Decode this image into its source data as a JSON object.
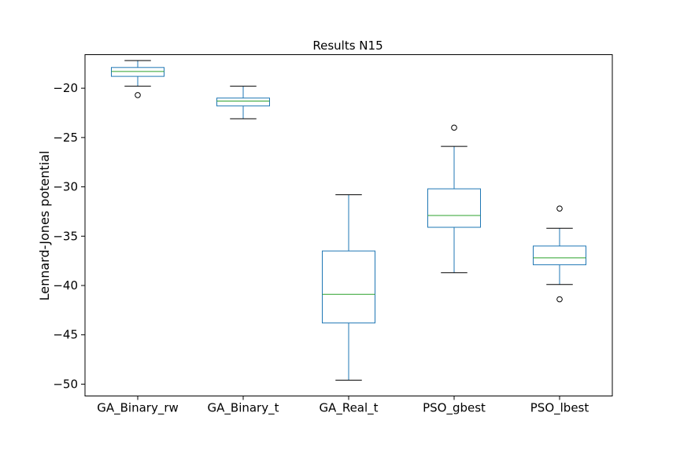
{
  "chart_data": {
    "type": "box",
    "title": "Results N15",
    "xlabel": "",
    "ylabel": "Lennard-Jones potential",
    "ylim": [
      -51.2,
      -16.6
    ],
    "yticks": [
      -20,
      -25,
      -30,
      -35,
      -40,
      -45,
      -50
    ],
    "grid": false,
    "colors": {
      "box": "#1f77b4",
      "median": "#2ca02c",
      "whisker": "#000000",
      "flier": "#000000"
    },
    "categories": [
      "GA_Binary_rw",
      "GA_Binary_t",
      "GA_Real_t",
      "PSO_gbest",
      "PSO_lbest"
    ],
    "boxes": [
      {
        "whislo": -19.8,
        "q1": -18.8,
        "med": -18.3,
        "q3": -17.9,
        "whishi": -17.2,
        "fliers": [
          -20.7
        ]
      },
      {
        "whislo": -23.1,
        "q1": -21.8,
        "med": -21.3,
        "q3": -21.0,
        "whishi": -19.8,
        "fliers": []
      },
      {
        "whislo": -49.6,
        "q1": -43.8,
        "med": -40.9,
        "q3": -36.5,
        "whishi": -30.8,
        "fliers": []
      },
      {
        "whislo": -38.7,
        "q1": -34.1,
        "med": -32.9,
        "q3": -30.2,
        "whishi": -25.9,
        "fliers": [
          -24.0
        ]
      },
      {
        "whislo": -39.9,
        "q1": -37.9,
        "med": -37.2,
        "q3": -36.0,
        "whishi": -34.2,
        "fliers": [
          -32.2,
          -41.4
        ]
      }
    ]
  }
}
